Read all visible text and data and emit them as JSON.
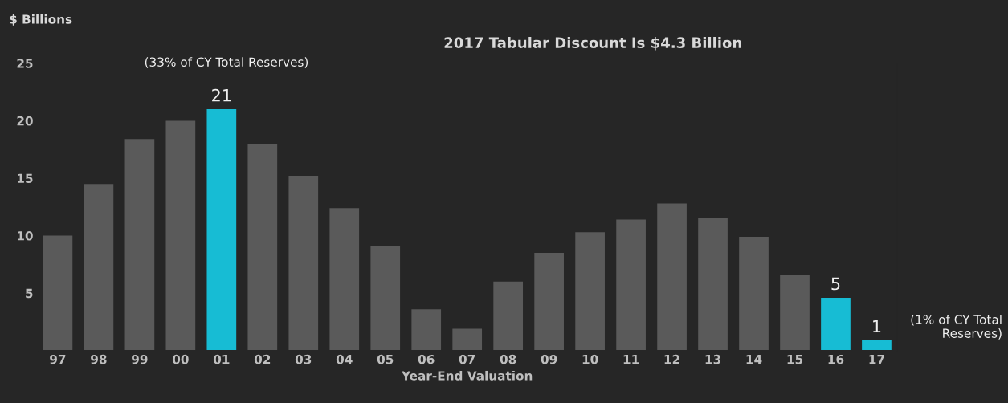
{
  "chart_data": {
    "type": "bar",
    "title": "2017 Tabular Discount Is $4.3 Billion",
    "ylabel": "$ Billions",
    "xlabel": "Year-End Valuation",
    "categories": [
      "97",
      "98",
      "99",
      "00",
      "01",
      "02",
      "03",
      "04",
      "05",
      "06",
      "07",
      "08",
      "09",
      "10",
      "11",
      "12",
      "13",
      "14",
      "15",
      "16",
      "17"
    ],
    "values": [
      10.0,
      14.5,
      18.4,
      20.0,
      21,
      18.0,
      15.2,
      12.4,
      9.1,
      3.6,
      1.9,
      6.0,
      8.5,
      10.3,
      11.4,
      12.8,
      11.5,
      9.9,
      6.6,
      4.6,
      0.9
    ],
    "colors": [
      "#5a5a5a",
      "#5a5a5a",
      "#5a5a5a",
      "#5a5a5a",
      "#17bcd4",
      "#5a5a5a",
      "#5a5a5a",
      "#5a5a5a",
      "#5a5a5a",
      "#5a5a5a",
      "#5a5a5a",
      "#5a5a5a",
      "#5a5a5a",
      "#5a5a5a",
      "#5a5a5a",
      "#5a5a5a",
      "#5a5a5a",
      "#5a5a5a",
      "#5a5a5a",
      "#17bcd4",
      "#17bcd4"
    ],
    "value_labels": [
      null,
      null,
      null,
      null,
      "21",
      null,
      null,
      null,
      null,
      null,
      null,
      null,
      null,
      null,
      null,
      null,
      null,
      null,
      null,
      "5",
      "1"
    ],
    "annotations": [
      "(33% of CY Total Reserves)",
      {
        "text": "(1% of CY Total\nReserves)",
        "x": "17",
        "y": 0.9
      }
    ],
    "ylim": [
      0,
      25
    ],
    "yticks": [
      5,
      10,
      15,
      20,
      25
    ],
    "grid": false,
    "legend": false
  }
}
